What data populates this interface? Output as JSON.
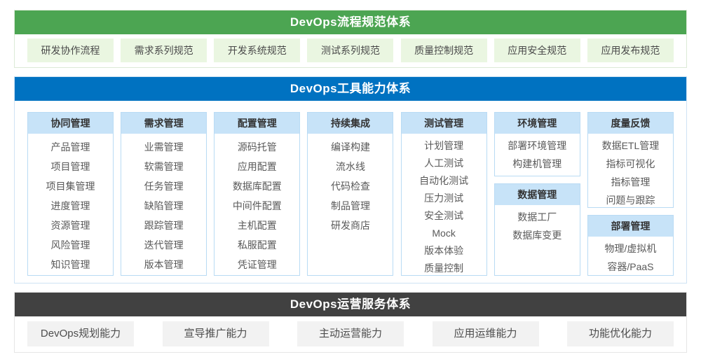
{
  "colors": {
    "process_banner": "#4ca552",
    "process_pill_bg": "#eaf6e1",
    "tools_banner": "#0072c1",
    "tools_header_bg": "#c7e3f8",
    "tools_border": "#b9dbf4",
    "ops_banner": "#414141",
    "ops_pill_bg": "#f2f2f2"
  },
  "process_section": {
    "title": "DevOps流程规范体系",
    "items": [
      "研发协作流程",
      "需求系列规范",
      "开发系统规范",
      "测试系列规范",
      "质量控制规范",
      "应用安全规范",
      "应用发布规范"
    ]
  },
  "tools_section": {
    "title": "DevOps工具能力体系",
    "columns": [
      {
        "boxes": [
          {
            "header": "协同管理",
            "items": [
              "产品管理",
              "项目管理",
              "项目集管理",
              "进度管理",
              "资源管理",
              "风险管理",
              "知识管理"
            ]
          }
        ]
      },
      {
        "boxes": [
          {
            "header": "需求管理",
            "items": [
              "业需管理",
              "软需管理",
              "任务管理",
              "缺陷管理",
              "跟踪管理",
              "迭代管理",
              "版本管理"
            ]
          }
        ]
      },
      {
        "boxes": [
          {
            "header": "配置管理",
            "items": [
              "源码托管",
              "应用配置",
              "数据库配置",
              "中间件配置",
              "主机配置",
              "私服配置",
              "凭证管理"
            ]
          }
        ]
      },
      {
        "boxes": [
          {
            "header": "持续集成",
            "items": [
              "编译构建",
              "流水线",
              "代码检查",
              "制品管理",
              "研发商店"
            ]
          }
        ]
      },
      {
        "boxes": [
          {
            "header": "测试管理",
            "items": [
              "计划管理",
              "人工测试",
              "自动化测试",
              "压力测试",
              "安全测试",
              "Mock",
              "版本体验",
              "质量控制"
            ]
          }
        ]
      },
      {
        "boxes": [
          {
            "header": "环境管理",
            "items": [
              "部署环境管理",
              "构建机管理"
            ]
          },
          {
            "header": "数据管理",
            "items": [
              "数据工厂",
              "数据库变更"
            ]
          }
        ]
      },
      {
        "boxes": [
          {
            "header": "度量反馈",
            "items": [
              "数据ETL管理",
              "指标可视化",
              "指标管理",
              "问题与跟踪"
            ]
          },
          {
            "header": "部署管理",
            "items": [
              "物理/虚拟机",
              "容器/PaaS"
            ]
          }
        ]
      }
    ]
  },
  "operations_section": {
    "title": "DevOps运营服务体系",
    "items": [
      "DevOps规划能力",
      "宣导推广能力",
      "主动运营能力",
      "应用运维能力",
      "功能优化能力"
    ]
  }
}
